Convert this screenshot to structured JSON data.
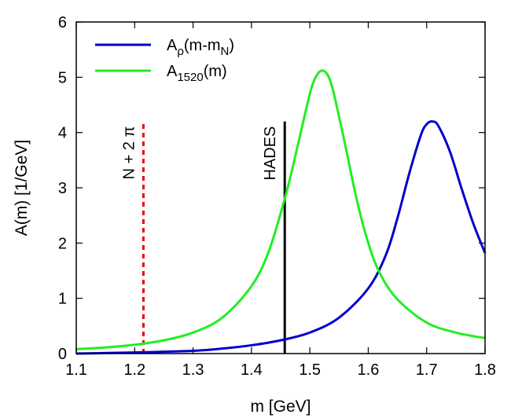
{
  "chart_data": {
    "type": "line",
    "xlabel": "m [GeV]",
    "ylabel": "A(m) [1/GeV]",
    "xlim": [
      1.1,
      1.8
    ],
    "ylim": [
      0,
      6
    ],
    "xticks": [
      "1.1",
      "1.2",
      "1.3",
      "1.4",
      "1.5",
      "1.6",
      "1.7",
      "1.8"
    ],
    "yticks": [
      "0",
      "1",
      "2",
      "3",
      "4",
      "5",
      "6"
    ],
    "grid": false,
    "legend_position": "top-left",
    "series": [
      {
        "name": "A_ρ(m-m_N)",
        "legend_main": "A",
        "legend_sub": "ρ",
        "legend_rest": "(m-m",
        "legend_sub2": "N",
        "legend_close": ")",
        "color": "#0000cc",
        "x": [
          1.1,
          1.2,
          1.3,
          1.35,
          1.4,
          1.45,
          1.5,
          1.55,
          1.6,
          1.63,
          1.65,
          1.67,
          1.69,
          1.7,
          1.71,
          1.72,
          1.74,
          1.76,
          1.78,
          1.8
        ],
        "y": [
          0.0,
          0.02,
          0.05,
          0.09,
          0.15,
          0.24,
          0.38,
          0.65,
          1.18,
          1.78,
          2.45,
          3.25,
          3.95,
          4.15,
          4.2,
          4.12,
          3.65,
          2.98,
          2.35,
          1.82
        ]
      },
      {
        "name": "A_1520(m)",
        "legend_main": "A",
        "legend_sub": "1520",
        "legend_rest": "(m)",
        "color": "#22ee22",
        "x": [
          1.1,
          1.15,
          1.2,
          1.25,
          1.3,
          1.35,
          1.4,
          1.43,
          1.46,
          1.48,
          1.5,
          1.51,
          1.52,
          1.53,
          1.54,
          1.56,
          1.58,
          1.6,
          1.62,
          1.65,
          1.7,
          1.75,
          1.8
        ],
        "y": [
          0.08,
          0.11,
          0.16,
          0.24,
          0.38,
          0.65,
          1.22,
          1.86,
          2.92,
          3.8,
          4.7,
          5.0,
          5.12,
          5.05,
          4.75,
          3.8,
          2.8,
          2.0,
          1.45,
          0.98,
          0.56,
          0.38,
          0.28
        ]
      }
    ],
    "annotations": [
      {
        "label": "N + 2 π",
        "x": 1.215,
        "y_top": 4.2,
        "color": "#ee0000",
        "style": "dashed"
      },
      {
        "label": "HADES",
        "x": 1.457,
        "y_top": 4.2,
        "color": "#000000",
        "style": "solid"
      }
    ]
  }
}
